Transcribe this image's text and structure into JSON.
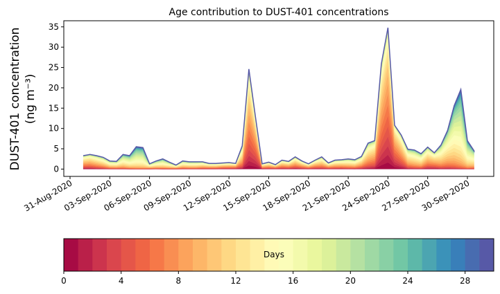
{
  "chart_data": {
    "type": "area",
    "title": "Age contribution to DUST-401 concentrations",
    "ylabel_line1": "DUST-401 concentration",
    "ylabel_line2": "(ng m⁻³)",
    "xlabel": "",
    "ylim": [
      -1.8,
      36.5
    ],
    "yticks": [
      0,
      5,
      10,
      15,
      20,
      25,
      30,
      35
    ],
    "xticks": [
      "31-Aug-2020",
      "03-Sep-2020",
      "06-Sep-2020",
      "09-Sep-2020",
      "12-Sep-2020",
      "15-Sep-2020",
      "18-Sep-2020",
      "21-Sep-2020",
      "24-Sep-2020",
      "27-Sep-2020",
      "30-Sep-2020"
    ],
    "xtick_days": [
      0,
      3,
      6,
      9,
      12,
      15,
      18,
      21,
      24,
      27,
      30
    ],
    "x_start_day": 1,
    "x_step_days": 0.5,
    "total": [
      3.3,
      3.6,
      3.3,
      2.9,
      2.0,
      1.9,
      3.6,
      3.3,
      5.5,
      5.3,
      1.3,
      2.0,
      2.5,
      1.7,
      1.0,
      2.0,
      1.8,
      1.8,
      1.8,
      1.4,
      1.4,
      1.5,
      1.6,
      1.4,
      5.7,
      24.6,
      12.8,
      1.3,
      1.7,
      1.1,
      2.2,
      1.9,
      3.0,
      2.0,
      1.3,
      2.2,
      3.0,
      1.5,
      2.2,
      2.3,
      2.5,
      2.3,
      3.1,
      6.4,
      7.0,
      25.9,
      34.8,
      10.8,
      8.4,
      4.9,
      4.7,
      3.8,
      5.4,
      4.0,
      5.9,
      9.5,
      15.6,
      19.6,
      7.0,
      4.5
    ],
    "mean_age_days": [
      9,
      9,
      10,
      11,
      12,
      12,
      14,
      15,
      17,
      17,
      12,
      13,
      14,
      13,
      11,
      12,
      12,
      12,
      11,
      10,
      10,
      9,
      9,
      8,
      10,
      7,
      6,
      9,
      9,
      8,
      9,
      9,
      9,
      9,
      9,
      9,
      10,
      9,
      10,
      10,
      11,
      11,
      10,
      10,
      9,
      7,
      6,
      6,
      8,
      11,
      12,
      12,
      10,
      9,
      12,
      13,
      15,
      17,
      16,
      14
    ],
    "age_bins": 30,
    "colorbar": {
      "label": "Days",
      "ticks": [
        0,
        4,
        8,
        12,
        16,
        20,
        24,
        28
      ],
      "range": [
        0,
        30
      ]
    },
    "colormap": [
      "#9e0142",
      "#d53e4f",
      "#f46d43",
      "#fdae61",
      "#fee08b",
      "#ffffbf",
      "#e6f598",
      "#abdda4",
      "#66c2a5",
      "#3288bd",
      "#5e4fa2"
    ]
  }
}
